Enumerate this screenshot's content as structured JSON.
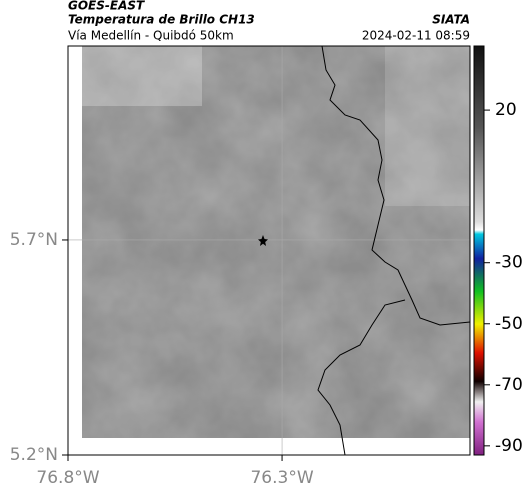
{
  "header": {
    "source": "GOES-EAST",
    "title": "Temperatura de Brillo CH13",
    "org": "SIATA",
    "subtitle": "Vía Medellín - Quibdó 50km",
    "timestamp": "2024-02-11 08:59"
  },
  "map": {
    "latlim": [
      5.2,
      6.151
    ],
    "lonlim": [
      -76.8,
      -75.861
    ],
    "latticks": [
      {
        "value": 5.2,
        "label": "5.2°N"
      },
      {
        "value": 5.7,
        "label": "5.7°N"
      }
    ],
    "lonticks": [
      {
        "value": -76.8,
        "label": "76.8°W"
      },
      {
        "value": -76.3,
        "label": "76.3°W"
      }
    ]
  },
  "colorbar": {
    "lim": [
      -93,
      41
    ],
    "ticks": [
      20,
      -30,
      -50,
      -70,
      -90
    ]
  }
}
